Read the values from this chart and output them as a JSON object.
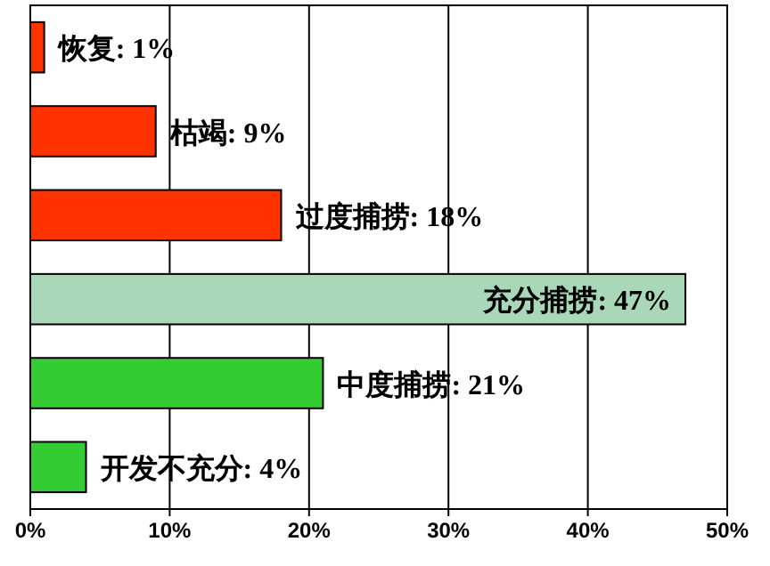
{
  "chart_data": {
    "type": "bar",
    "orientation": "horizontal",
    "categories": [
      null,
      null,
      null,
      null,
      null,
      null
    ],
    "values": [
      1,
      9,
      18,
      47,
      21,
      4
    ],
    "colors": [
      "#ff3300",
      "#ff3300",
      "#ff3300",
      "#a8d8b8",
      "#33cc33",
      "#33cc33"
    ],
    "value_labels": [
      "恢复: 1%",
      "枯竭: 9%",
      "过度捕捞: 18%",
      "充分捕捞: 47%",
      "中度捕捞: 21%",
      "开发不充分: 4%"
    ],
    "xlim": [
      0,
      50
    ],
    "xticks": [
      {
        "value": 0,
        "label": "0%"
      },
      {
        "value": 10,
        "label": "10%"
      },
      {
        "value": 20,
        "label": "20%"
      },
      {
        "value": 30,
        "label": "30%"
      },
      {
        "value": 40,
        "label": "40%"
      },
      {
        "value": 50,
        "label": "50%"
      }
    ],
    "grid": "x"
  }
}
